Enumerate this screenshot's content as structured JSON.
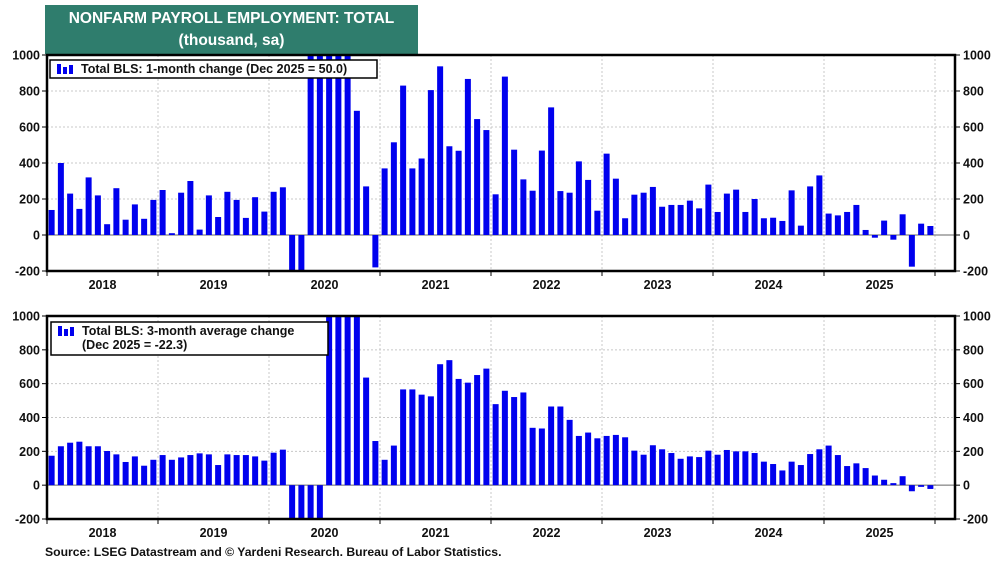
{
  "title": {
    "line1": "NONFARM PAYROLL EMPLOYMENT: TOTAL",
    "line2": "(thousand, sa)",
    "background": "#2f7d6d"
  },
  "source": "Source: LSEG Datastream and © Yardeni Research. Bureau of Labor Statistics.",
  "chart_data": [
    {
      "type": "bar",
      "title": "Total BLS: 1-month change",
      "legend": [
        "Total BLS: 1-month change (Dec 2025 = 50.0)"
      ],
      "legend_position": "top-left",
      "bar_color": "#0000ee",
      "x_start": "2018-01",
      "x_end": "2025-12",
      "x_ticks": [
        "2018",
        "2019",
        "2020",
        "2021",
        "2022",
        "2023",
        "2024",
        "2025"
      ],
      "ylim": [
        -200,
        1000
      ],
      "y_ticks": [
        -200,
        0,
        200,
        400,
        600,
        800,
        1000
      ],
      "grid": true,
      "xlabel": "",
      "ylabel": "",
      "note": "Values beyond the axis range are clipped in the figure (Mar-Apr 2020 below -200; May-Sep 2020 above 1000).",
      "values": [
        139,
        400,
        230,
        145,
        320,
        220,
        60,
        260,
        85,
        170,
        90,
        195,
        250,
        10,
        235,
        300,
        30,
        220,
        100,
        240,
        195,
        95,
        210,
        130,
        240,
        265,
        -1400,
        -20500,
        2800,
        4800,
        1700,
        1500,
        1050,
        690,
        270,
        -180,
        370,
        515,
        830,
        370,
        425,
        805,
        937,
        493,
        468,
        867,
        644,
        583,
        226,
        880,
        474,
        309,
        246,
        469,
        709,
        244,
        235,
        409,
        306,
        135,
        452,
        313,
        93,
        224,
        235,
        267,
        157,
        167,
        167,
        191,
        148,
        280,
        128,
        230,
        252,
        128,
        200,
        93,
        96,
        78,
        248,
        52,
        270,
        331,
        119,
        109,
        128,
        167,
        28,
        -15,
        80,
        -26,
        115,
        -176,
        63,
        50
      ]
    },
    {
      "type": "bar",
      "title": "Total BLS: 3-month average change",
      "legend": [
        "Total BLS: 3-month average change",
        "(Dec 2025 = -22.3)"
      ],
      "legend_position": "top-left",
      "bar_color": "#0000ee",
      "x_start": "2018-01",
      "x_end": "2025-12",
      "x_ticks": [
        "2018",
        "2019",
        "2020",
        "2021",
        "2022",
        "2023",
        "2024",
        "2025"
      ],
      "ylim": [
        -200,
        1000
      ],
      "y_ticks": [
        -200,
        0,
        200,
        400,
        600,
        800,
        1000
      ],
      "grid": true,
      "xlabel": "",
      "ylabel": "",
      "note": "Values beyond the axis range are clipped in the figure (Mar-Jun 2020 below -200; Jul-Oct 2020 above 1000).",
      "values": [
        174,
        230,
        251,
        257,
        230,
        230,
        202,
        182,
        137,
        170,
        115,
        150,
        178,
        150,
        164,
        178,
        188,
        182,
        119,
        182,
        178,
        178,
        170,
        145,
        192,
        210,
        -430,
        -7300,
        -6400,
        -4300,
        3100,
        2700,
        1400,
        1080,
        636,
        261,
        150,
        234,
        566,
        566,
        535,
        525,
        715,
        739,
        628,
        606,
        651,
        689,
        479,
        558,
        521,
        548,
        339,
        335,
        465,
        465,
        386,
        291,
        311,
        277,
        291,
        297,
        283,
        204,
        180,
        236,
        212,
        190,
        156,
        170,
        166,
        204,
        180,
        208,
        200,
        200,
        190,
        139,
        125,
        87,
        139,
        119,
        184,
        212,
        234,
        178,
        113,
        129,
        101,
        57,
        32,
        12,
        53,
        -36,
        -10,
        -22.3
      ]
    }
  ]
}
